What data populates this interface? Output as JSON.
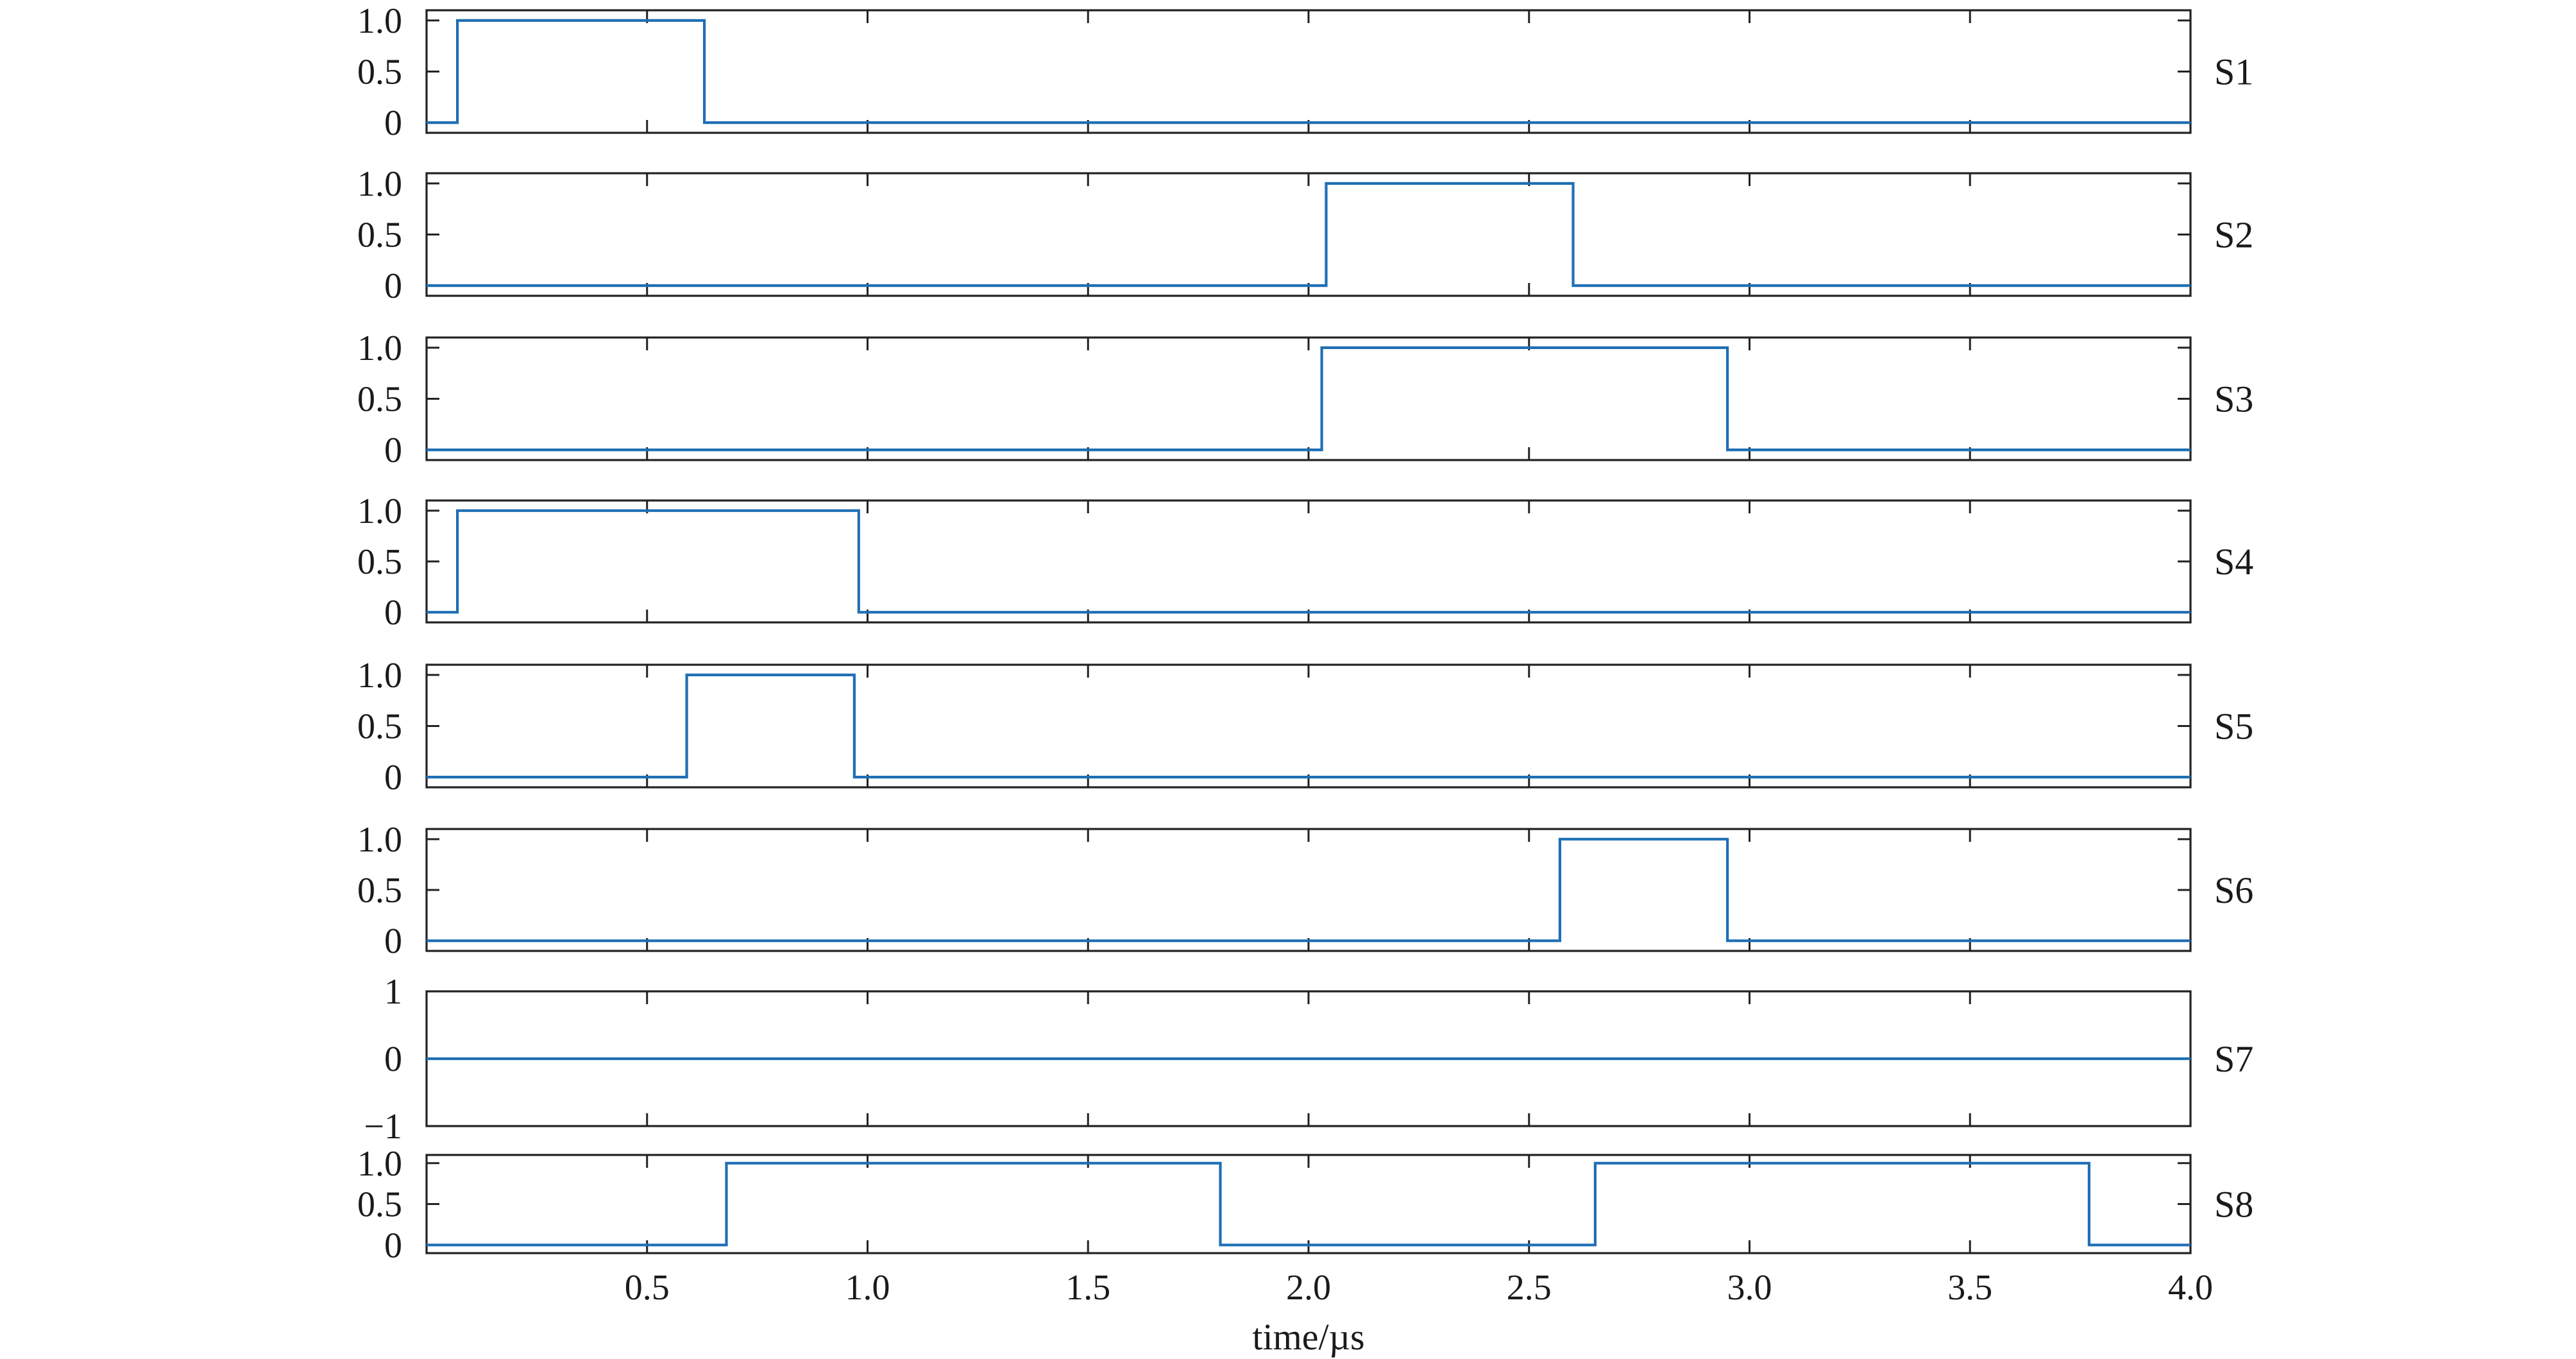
{
  "chart_data": {
    "type": "line",
    "xlabel": "time/µs",
    "xlim": [
      0,
      4.0
    ],
    "xticks": [
      0.5,
      1.0,
      1.5,
      2.0,
      2.5,
      3.0,
      3.5,
      4.0
    ],
    "xtick_labels": [
      "0.5",
      "1.0",
      "1.5",
      "2.0",
      "2.5",
      "3.0",
      "3.5",
      "4.0"
    ],
    "line_color": "#1f6fb5",
    "panels": [
      {
        "name": "S1",
        "ylim": [
          -0.1,
          1.1
        ],
        "yticks": [
          0,
          0.5,
          1.0
        ],
        "ytick_labels": [
          "0",
          "0.5",
          "1.0"
        ],
        "x": [
          0,
          0.07,
          0.07,
          0.63,
          0.63,
          4.0
        ],
        "y": [
          0,
          0,
          1,
          1,
          0,
          0
        ]
      },
      {
        "name": "S2",
        "ylim": [
          -0.1,
          1.1
        ],
        "yticks": [
          0,
          0.5,
          1.0
        ],
        "ytick_labels": [
          "0",
          "0.5",
          "1.0"
        ],
        "x": [
          0,
          2.04,
          2.04,
          2.6,
          2.6,
          4.0
        ],
        "y": [
          0,
          0,
          1,
          1,
          0,
          0
        ]
      },
      {
        "name": "S3",
        "ylim": [
          -0.1,
          1.1
        ],
        "yticks": [
          0,
          0.5,
          1.0
        ],
        "ytick_labels": [
          "0",
          "0.5",
          "1.0"
        ],
        "x": [
          0,
          2.03,
          2.03,
          2.95,
          2.95,
          4.0
        ],
        "y": [
          0,
          0,
          1,
          1,
          0,
          0
        ]
      },
      {
        "name": "S4",
        "ylim": [
          -0.1,
          1.1
        ],
        "yticks": [
          0,
          0.5,
          1.0
        ],
        "ytick_labels": [
          "0",
          "0.5",
          "1.0"
        ],
        "x": [
          0,
          0.07,
          0.07,
          0.98,
          0.98,
          4.0
        ],
        "y": [
          0,
          0,
          1,
          1,
          0,
          0
        ]
      },
      {
        "name": "S5",
        "ylim": [
          -0.1,
          1.1
        ],
        "yticks": [
          0,
          0.5,
          1.0
        ],
        "ytick_labels": [
          "0",
          "0.5",
          "1.0"
        ],
        "x": [
          0,
          0.59,
          0.59,
          0.97,
          0.97,
          4.0
        ],
        "y": [
          0,
          0,
          1,
          1,
          0,
          0
        ]
      },
      {
        "name": "S6",
        "ylim": [
          -0.1,
          1.1
        ],
        "yticks": [
          0,
          0.5,
          1.0
        ],
        "ytick_labels": [
          "0",
          "0.5",
          "1.0"
        ],
        "x": [
          0,
          2.57,
          2.57,
          2.95,
          2.95,
          4.0
        ],
        "y": [
          0,
          0,
          1,
          1,
          0,
          0
        ]
      },
      {
        "name": "S7",
        "ylim": [
          -1,
          1
        ],
        "yticks": [
          -1,
          0,
          1
        ],
        "ytick_labels": [
          "−1",
          "0",
          "1"
        ],
        "x": [
          0,
          4.0
        ],
        "y": [
          0,
          0
        ]
      },
      {
        "name": "S8",
        "ylim": [
          -0.1,
          1.1
        ],
        "yticks": [
          0,
          0.5,
          1.0
        ],
        "ytick_labels": [
          "0",
          "0.5",
          "1.0"
        ],
        "x": [
          0,
          0.68,
          0.68,
          1.8,
          1.8,
          2.65,
          2.65,
          3.77,
          3.77,
          4.0
        ],
        "y": [
          0,
          0,
          1,
          1,
          0,
          0,
          1,
          1,
          0,
          0
        ]
      }
    ]
  }
}
